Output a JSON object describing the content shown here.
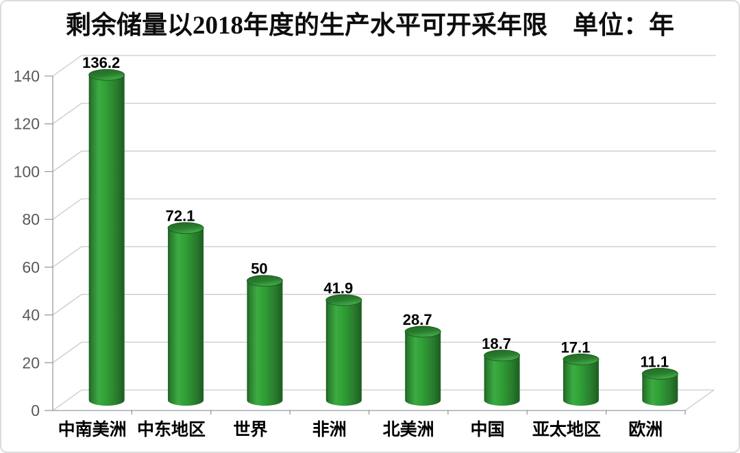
{
  "chart_data": {
    "type": "bar",
    "variant": "3d-cylinder",
    "title": "剩余储量以2018年度的生产水平可开采年限　单位：年",
    "categories": [
      "中南美洲",
      "中东地区",
      "世界",
      "非洲",
      "北美洲",
      "中国",
      "亚太地区",
      "欧洲"
    ],
    "values": [
      136.2,
      72.1,
      50,
      41.9,
      28.7,
      18.7,
      17.1,
      11.1
    ],
    "value_labels": [
      "136.2",
      "72.1",
      "50",
      "41.9",
      "28.7",
      "18.7",
      "17.1",
      "11.1"
    ],
    "xlabel": "",
    "ylabel": "",
    "ylim": [
      0,
      140
    ],
    "ytick_step": 20,
    "ytick_labels": [
      "0",
      "20",
      "40",
      "60",
      "80",
      "100",
      "120",
      "140"
    ],
    "grid": true,
    "legend": false,
    "colors": {
      "bar_dark": "#1b5e1f",
      "bar_edge": "#2a7c2e",
      "bar_main": "#2f9e35",
      "bar_light": "#3cab42",
      "bar_top_dark": "#1f6b23",
      "bar_top_light": "#43ad49",
      "bar_stroke": "#17521b",
      "grid_line": "#c9c9c9",
      "axis_line": "#9c9c9c",
      "tick_text": "#595959",
      "label_text": "#000000",
      "title_text": "#0d0d0d",
      "background": "#ffffff",
      "border": "#dcdcdc"
    }
  }
}
